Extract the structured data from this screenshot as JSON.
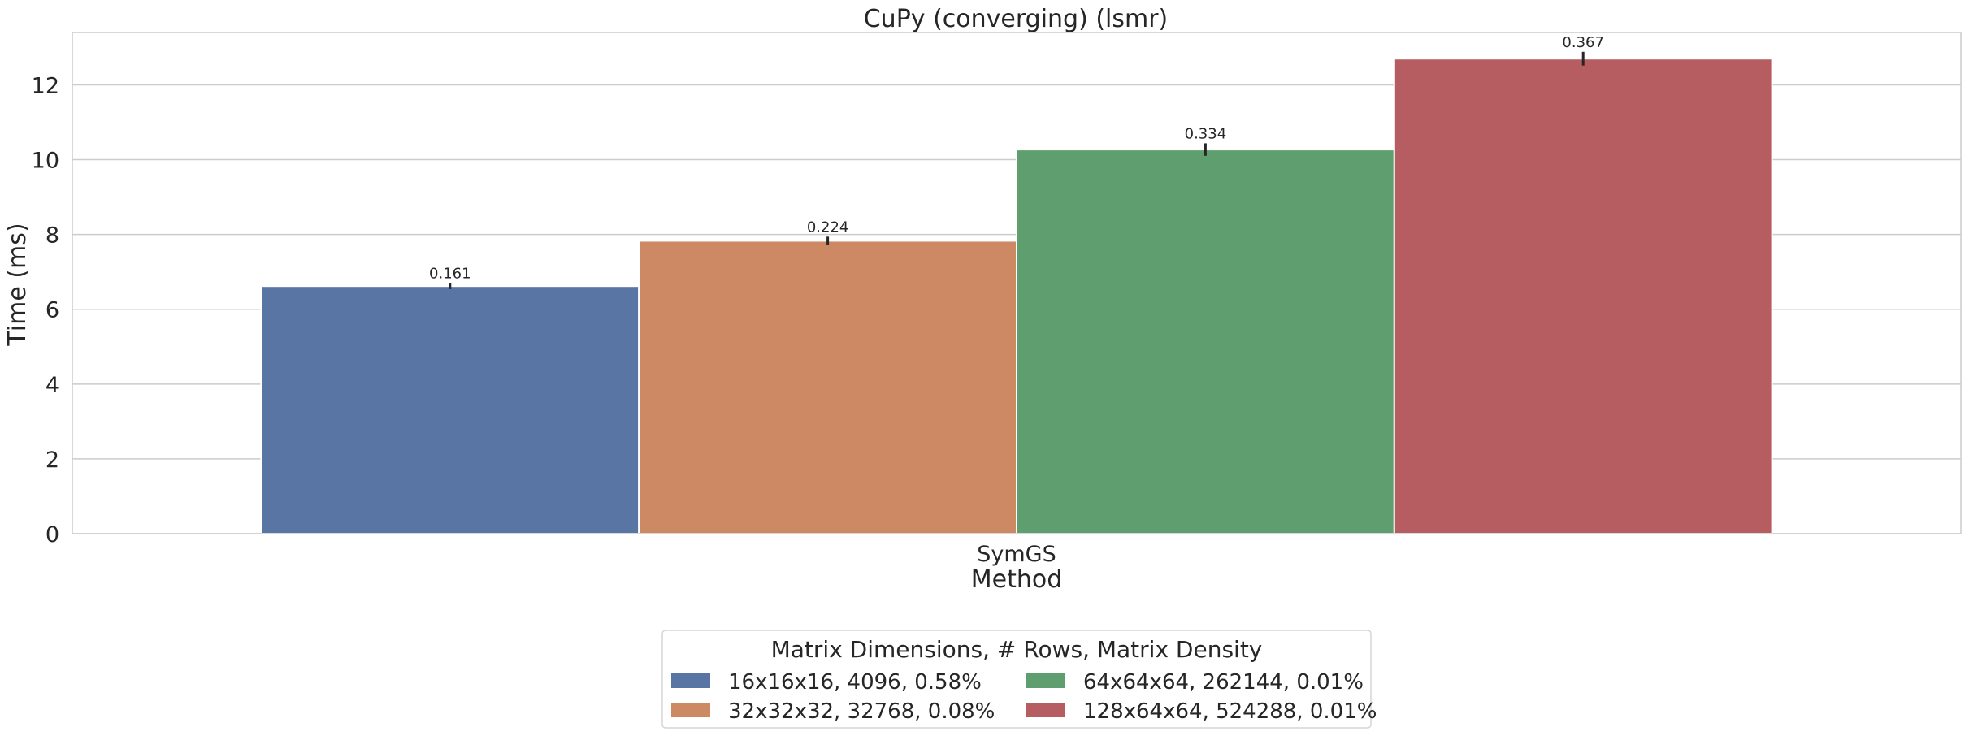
{
  "chart_data": {
    "type": "bar",
    "title": "CuPy (converging) (lsmr)",
    "xlabel": "Method",
    "ylabel": "Time (ms)",
    "categories": [
      "SymGS"
    ],
    "ylim": [
      0,
      13.4
    ],
    "yticks": [
      0,
      2,
      4,
      6,
      8,
      10,
      12
    ],
    "grid": true,
    "legend": {
      "title": "Matrix Dimensions, # Rows, Matrix Density",
      "placement": "bottom-center",
      "columns": 2
    },
    "series": [
      {
        "name": "16x16x16, 4096, 0.58%",
        "values": [
          6.62
        ],
        "error": [
          0.161
        ],
        "label": "0.161",
        "color": "#5975a4"
      },
      {
        "name": "32x32x32, 32768, 0.08%",
        "values": [
          7.83
        ],
        "error": [
          0.224
        ],
        "label": "0.224",
        "color": "#cc8963"
      },
      {
        "name": "64x64x64, 262144, 0.01%",
        "values": [
          10.27
        ],
        "error": [
          0.334
        ],
        "label": "0.334",
        "color": "#5f9e6e"
      },
      {
        "name": "128x64x64, 524288, 0.01%",
        "values": [
          12.7
        ],
        "error": [
          0.367
        ],
        "label": "0.367",
        "color": "#b55d60"
      }
    ]
  }
}
